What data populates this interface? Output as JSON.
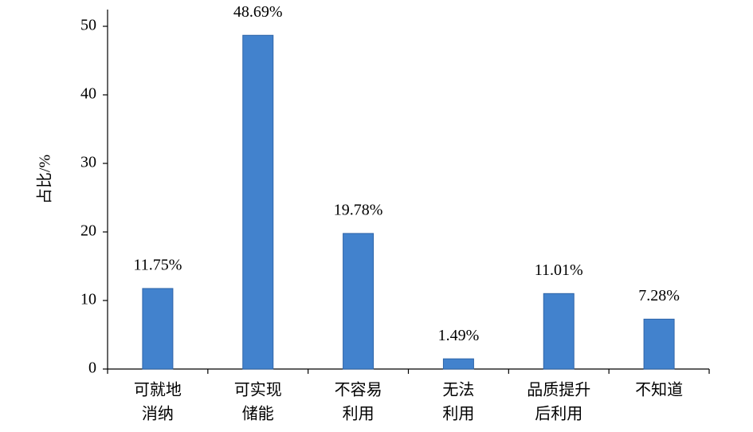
{
  "chart_data": {
    "type": "bar",
    "y_label": "占比/%",
    "categories": [
      [
        "可就地",
        "消纳"
      ],
      [
        "可实现",
        "储能"
      ],
      [
        "不容易",
        "利用"
      ],
      [
        "无法",
        "利用"
      ],
      [
        "品质提升",
        "后利用"
      ],
      [
        "不知道"
      ]
    ],
    "values": [
      11.75,
      48.69,
      19.78,
      1.49,
      11.01,
      7.28
    ],
    "value_labels": [
      "11.75%",
      "48.69%",
      "19.78%",
      "1.49%",
      "11.01%",
      "7.28%"
    ],
    "color": "#4282cd",
    "ylim": [
      0,
      50
    ],
    "yticks": [
      0,
      10,
      20,
      30,
      40,
      50
    ],
    "grid": false
  }
}
